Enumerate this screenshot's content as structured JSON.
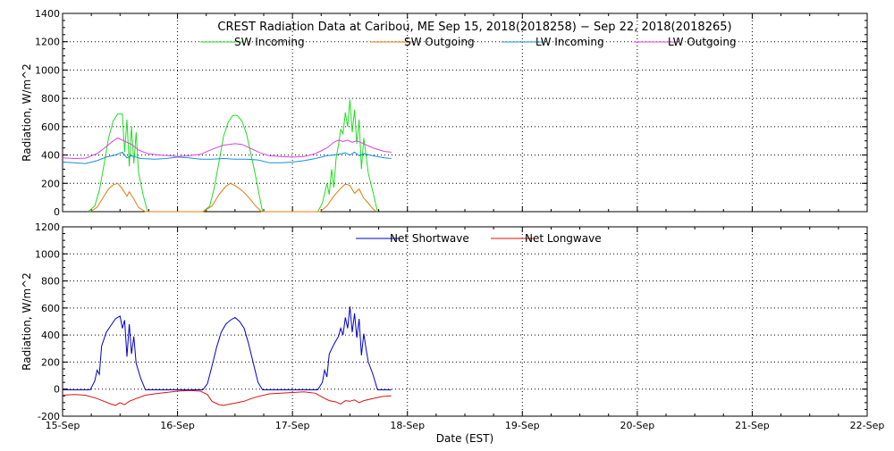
{
  "chart_data": [
    {
      "type": "line",
      "title": "CREST Radiation Data at Caribou, ME   Sep 15, 2018(2018258) − Sep 22, 2018(2018265)",
      "xlabel": "",
      "ylabel": "Radiation, W/m^2",
      "xlim": [
        "2018-09-15",
        "2018-09-22"
      ],
      "ylim": [
        0,
        1400
      ],
      "yticks": [
        0,
        200,
        400,
        600,
        800,
        1000,
        1200,
        1400
      ],
      "grid": true,
      "legend_position": "top",
      "series": [
        {
          "name": "SW Incoming",
          "color": "#22dd22",
          "points": [
            [
              0.22,
              0
            ],
            [
              0.28,
              40
            ],
            [
              0.32,
              150
            ],
            [
              0.36,
              330
            ],
            [
              0.4,
              520
            ],
            [
              0.44,
              640
            ],
            [
              0.48,
              690
            ],
            [
              0.52,
              690
            ],
            [
              0.54,
              420
            ],
            [
              0.56,
              650
            ],
            [
              0.58,
              320
            ],
            [
              0.6,
              600
            ],
            [
              0.62,
              340
            ],
            [
              0.64,
              560
            ],
            [
              0.66,
              280
            ],
            [
              0.7,
              120
            ],
            [
              0.74,
              0
            ],
            [
              1.22,
              0
            ],
            [
              1.28,
              40
            ],
            [
              1.32,
              170
            ],
            [
              1.36,
              350
            ],
            [
              1.4,
              530
            ],
            [
              1.44,
              630
            ],
            [
              1.48,
              680
            ],
            [
              1.52,
              680
            ],
            [
              1.56,
              640
            ],
            [
              1.6,
              550
            ],
            [
              1.64,
              400
            ],
            [
              1.68,
              250
            ],
            [
              1.72,
              80
            ],
            [
              1.74,
              0
            ],
            [
              2.22,
              0
            ],
            [
              2.26,
              60
            ],
            [
              2.3,
              200
            ],
            [
              2.32,
              120
            ],
            [
              2.34,
              300
            ],
            [
              2.36,
              170
            ],
            [
              2.38,
              380
            ],
            [
              2.4,
              470
            ],
            [
              2.42,
              580
            ],
            [
              2.44,
              550
            ],
            [
              2.46,
              700
            ],
            [
              2.48,
              600
            ],
            [
              2.5,
              790
            ],
            [
              2.52,
              560
            ],
            [
              2.54,
              720
            ],
            [
              2.56,
              480
            ],
            [
              2.58,
              650
            ],
            [
              2.6,
              300
            ],
            [
              2.62,
              520
            ],
            [
              2.64,
              400
            ],
            [
              2.66,
              270
            ],
            [
              2.7,
              140
            ],
            [
              2.74,
              0
            ]
          ]
        },
        {
          "name": "SW Outgoing",
          "color": "#e07a10",
          "points": [
            [
              0.24,
              0
            ],
            [
              0.3,
              30
            ],
            [
              0.36,
              110
            ],
            [
              0.4,
              160
            ],
            [
              0.44,
              190
            ],
            [
              0.48,
              200
            ],
            [
              0.52,
              160
            ],
            [
              0.56,
              110
            ],
            [
              0.58,
              140
            ],
            [
              0.62,
              90
            ],
            [
              0.66,
              30
            ],
            [
              0.72,
              0
            ],
            [
              1.22,
              0
            ],
            [
              1.3,
              40
            ],
            [
              1.36,
              120
            ],
            [
              1.42,
              180
            ],
            [
              1.46,
              200
            ],
            [
              1.5,
              185
            ],
            [
              1.56,
              150
            ],
            [
              1.62,
              100
            ],
            [
              1.68,
              40
            ],
            [
              1.73,
              0
            ],
            [
              2.24,
              0
            ],
            [
              2.3,
              40
            ],
            [
              2.36,
              110
            ],
            [
              2.42,
              165
            ],
            [
              2.46,
              195
            ],
            [
              2.5,
              185
            ],
            [
              2.54,
              130
            ],
            [
              2.58,
              160
            ],
            [
              2.62,
              95
            ],
            [
              2.66,
              60
            ],
            [
              2.7,
              20
            ],
            [
              2.73,
              0
            ]
          ]
        },
        {
          "name": "LW Incoming",
          "color": "#1890d8",
          "points": [
            [
              0.0,
              350
            ],
            [
              0.1,
              345
            ],
            [
              0.2,
              340
            ],
            [
              0.3,
              360
            ],
            [
              0.38,
              385
            ],
            [
              0.46,
              400
            ],
            [
              0.52,
              420
            ],
            [
              0.56,
              380
            ],
            [
              0.6,
              395
            ],
            [
              0.68,
              375
            ],
            [
              0.8,
              370
            ],
            [
              0.9,
              375
            ],
            [
              1.0,
              385
            ],
            [
              1.1,
              380
            ],
            [
              1.2,
              370
            ],
            [
              1.3,
              370
            ],
            [
              1.4,
              375
            ],
            [
              1.5,
              370
            ],
            [
              1.6,
              370
            ],
            [
              1.7,
              365
            ],
            [
              1.8,
              345
            ],
            [
              1.9,
              345
            ],
            [
              2.0,
              350
            ],
            [
              2.1,
              360
            ],
            [
              2.2,
              375
            ],
            [
              2.3,
              395
            ],
            [
              2.4,
              405
            ],
            [
              2.46,
              415
            ],
            [
              2.5,
              400
            ],
            [
              2.54,
              420
            ],
            [
              2.58,
              395
            ],
            [
              2.62,
              410
            ],
            [
              2.7,
              395
            ],
            [
              2.8,
              380
            ],
            [
              2.86,
              375
            ]
          ]
        },
        {
          "name": "LW Outgoing",
          "color": "#e040e0",
          "points": [
            [
              0.0,
              380
            ],
            [
              0.1,
              375
            ],
            [
              0.2,
              378
            ],
            [
              0.3,
              410
            ],
            [
              0.38,
              460
            ],
            [
              0.44,
              500
            ],
            [
              0.48,
              520
            ],
            [
              0.52,
              505
            ],
            [
              0.56,
              490
            ],
            [
              0.6,
              475
            ],
            [
              0.66,
              435
            ],
            [
              0.74,
              410
            ],
            [
              0.84,
              400
            ],
            [
              0.94,
              395
            ],
            [
              1.0,
              390
            ],
            [
              1.1,
              395
            ],
            [
              1.2,
              405
            ],
            [
              1.3,
              440
            ],
            [
              1.4,
              470
            ],
            [
              1.5,
              480
            ],
            [
              1.56,
              475
            ],
            [
              1.64,
              445
            ],
            [
              1.72,
              415
            ],
            [
              1.8,
              395
            ],
            [
              1.9,
              390
            ],
            [
              2.0,
              385
            ],
            [
              2.1,
              390
            ],
            [
              2.2,
              410
            ],
            [
              2.3,
              450
            ],
            [
              2.36,
              490
            ],
            [
              2.4,
              505
            ],
            [
              2.44,
              495
            ],
            [
              2.48,
              505
            ],
            [
              2.52,
              490
            ],
            [
              2.56,
              500
            ],
            [
              2.62,
              480
            ],
            [
              2.7,
              450
            ],
            [
              2.8,
              425
            ],
            [
              2.86,
              420
            ]
          ]
        }
      ]
    },
    {
      "type": "line",
      "xlabel": "Date (EST)",
      "ylabel": "Radiation, W/m^2",
      "xlim": [
        "2018-09-15",
        "2018-09-22"
      ],
      "ylim": [
        -200,
        1200
      ],
      "yticks": [
        -200,
        0,
        200,
        400,
        600,
        800,
        1000,
        1200
      ],
      "xtick_labels": [
        "15-Sep",
        "16-Sep",
        "17-Sep",
        "18-Sep",
        "19-Sep",
        "20-Sep",
        "21-Sep",
        "22-Sep"
      ],
      "grid": true,
      "legend_position": "top",
      "series": [
        {
          "name": "Net Shortwave",
          "color": "#0000cc",
          "points": [
            [
              0.0,
              -5
            ],
            [
              0.24,
              -5
            ],
            [
              0.28,
              60
            ],
            [
              0.3,
              140
            ],
            [
              0.32,
              110
            ],
            [
              0.34,
              320
            ],
            [
              0.38,
              420
            ],
            [
              0.42,
              470
            ],
            [
              0.46,
              520
            ],
            [
              0.5,
              540
            ],
            [
              0.52,
              450
            ],
            [
              0.54,
              510
            ],
            [
              0.56,
              240
            ],
            [
              0.58,
              480
            ],
            [
              0.6,
              260
            ],
            [
              0.62,
              390
            ],
            [
              0.64,
              190
            ],
            [
              0.68,
              80
            ],
            [
              0.72,
              -5
            ],
            [
              1.22,
              -5
            ],
            [
              1.26,
              40
            ],
            [
              1.3,
              170
            ],
            [
              1.34,
              310
            ],
            [
              1.38,
              420
            ],
            [
              1.42,
              480
            ],
            [
              1.46,
              510
            ],
            [
              1.5,
              530
            ],
            [
              1.54,
              500
            ],
            [
              1.58,
              450
            ],
            [
              1.62,
              330
            ],
            [
              1.66,
              190
            ],
            [
              1.7,
              50
            ],
            [
              1.74,
              -5
            ],
            [
              2.22,
              -5
            ],
            [
              2.26,
              50
            ],
            [
              2.28,
              140
            ],
            [
              2.3,
              90
            ],
            [
              2.32,
              260
            ],
            [
              2.36,
              330
            ],
            [
              2.4,
              390
            ],
            [
              2.42,
              450
            ],
            [
              2.44,
              400
            ],
            [
              2.46,
              530
            ],
            [
              2.48,
              450
            ],
            [
              2.5,
              610
            ],
            [
              2.52,
              420
            ],
            [
              2.54,
              560
            ],
            [
              2.56,
              380
            ],
            [
              2.58,
              520
            ],
            [
              2.6,
              250
            ],
            [
              2.62,
              410
            ],
            [
              2.64,
              300
            ],
            [
              2.66,
              200
            ],
            [
              2.7,
              110
            ],
            [
              2.74,
              -5
            ],
            [
              2.86,
              -5
            ]
          ]
        },
        {
          "name": "Net Longwave",
          "color": "#dd1111",
          "points": [
            [
              0.0,
              -45
            ],
            [
              0.1,
              -40
            ],
            [
              0.2,
              -45
            ],
            [
              0.3,
              -70
            ],
            [
              0.36,
              -90
            ],
            [
              0.42,
              -110
            ],
            [
              0.46,
              -120
            ],
            [
              0.5,
              -100
            ],
            [
              0.54,
              -115
            ],
            [
              0.58,
              -90
            ],
            [
              0.64,
              -70
            ],
            [
              0.72,
              -45
            ],
            [
              0.8,
              -35
            ],
            [
              0.9,
              -25
            ],
            [
              1.0,
              -15
            ],
            [
              1.1,
              -10
            ],
            [
              1.2,
              -15
            ],
            [
              1.26,
              -40
            ],
            [
              1.3,
              -90
            ],
            [
              1.36,
              -115
            ],
            [
              1.4,
              -120
            ],
            [
              1.46,
              -110
            ],
            [
              1.52,
              -100
            ],
            [
              1.58,
              -90
            ],
            [
              1.64,
              -70
            ],
            [
              1.72,
              -50
            ],
            [
              1.8,
              -35
            ],
            [
              1.9,
              -30
            ],
            [
              2.0,
              -25
            ],
            [
              2.1,
              -20
            ],
            [
              2.2,
              -30
            ],
            [
              2.26,
              -60
            ],
            [
              2.32,
              -85
            ],
            [
              2.38,
              -95
            ],
            [
              2.42,
              -110
            ],
            [
              2.46,
              -85
            ],
            [
              2.5,
              -90
            ],
            [
              2.54,
              -80
            ],
            [
              2.58,
              -100
            ],
            [
              2.62,
              -85
            ],
            [
              2.7,
              -70
            ],
            [
              2.78,
              -55
            ],
            [
              2.86,
              -50
            ]
          ]
        }
      ]
    }
  ]
}
